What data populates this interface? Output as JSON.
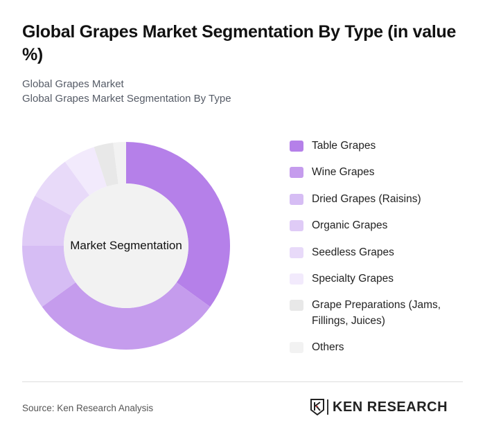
{
  "header": {
    "title": "Global Grapes Market Segmentation By Type (in value %)",
    "subtitle_1": "Global Grapes Market",
    "subtitle_2": "Global Grapes Market Segmentation By Type"
  },
  "center_label": "Market Segmentation",
  "footer": {
    "source": "Source: Ken Research Analysis",
    "logo_text": "KEN RESEARCH"
  },
  "legend": [
    {
      "label": "Table Grapes",
      "color": "#B580E9"
    },
    {
      "label": "Wine Grapes",
      "color": "#C59CED"
    },
    {
      "label": "Dried Grapes (Raisins)",
      "color": "#D6BDF4"
    },
    {
      "label": "Organic Grapes",
      "color": "#DFCBF6"
    },
    {
      "label": "Seedless Grapes",
      "color": "#E8DAF9"
    },
    {
      "label": "Specialty Grapes",
      "color": "#F2EAFC"
    },
    {
      "label": "Grape Preparations (Jams, Fillings, Juices)",
      "color": "#E8E8E8"
    },
    {
      "label": "Others",
      "color": "#F2F2F2"
    }
  ],
  "chart_data": {
    "type": "pie",
    "subtype": "donut",
    "title": "Global Grapes Market Segmentation By Type (in value %)",
    "center_label": "Market Segmentation",
    "categories": [
      "Table Grapes",
      "Wine Grapes",
      "Dried Grapes (Raisins)",
      "Organic Grapes",
      "Seedless Grapes",
      "Specialty Grapes",
      "Grape Preparations (Jams, Fillings, Juices)",
      "Others"
    ],
    "values": [
      35,
      30,
      10,
      8,
      7,
      5,
      3,
      2
    ],
    "colors": [
      "#B580E9",
      "#C59CED",
      "#D6BDF4",
      "#DFCBF6",
      "#E8DAF9",
      "#F2EAFC",
      "#E8E8E8",
      "#F2F2F2"
    ],
    "legend_position": "right",
    "start_angle": "top, clockwise"
  }
}
